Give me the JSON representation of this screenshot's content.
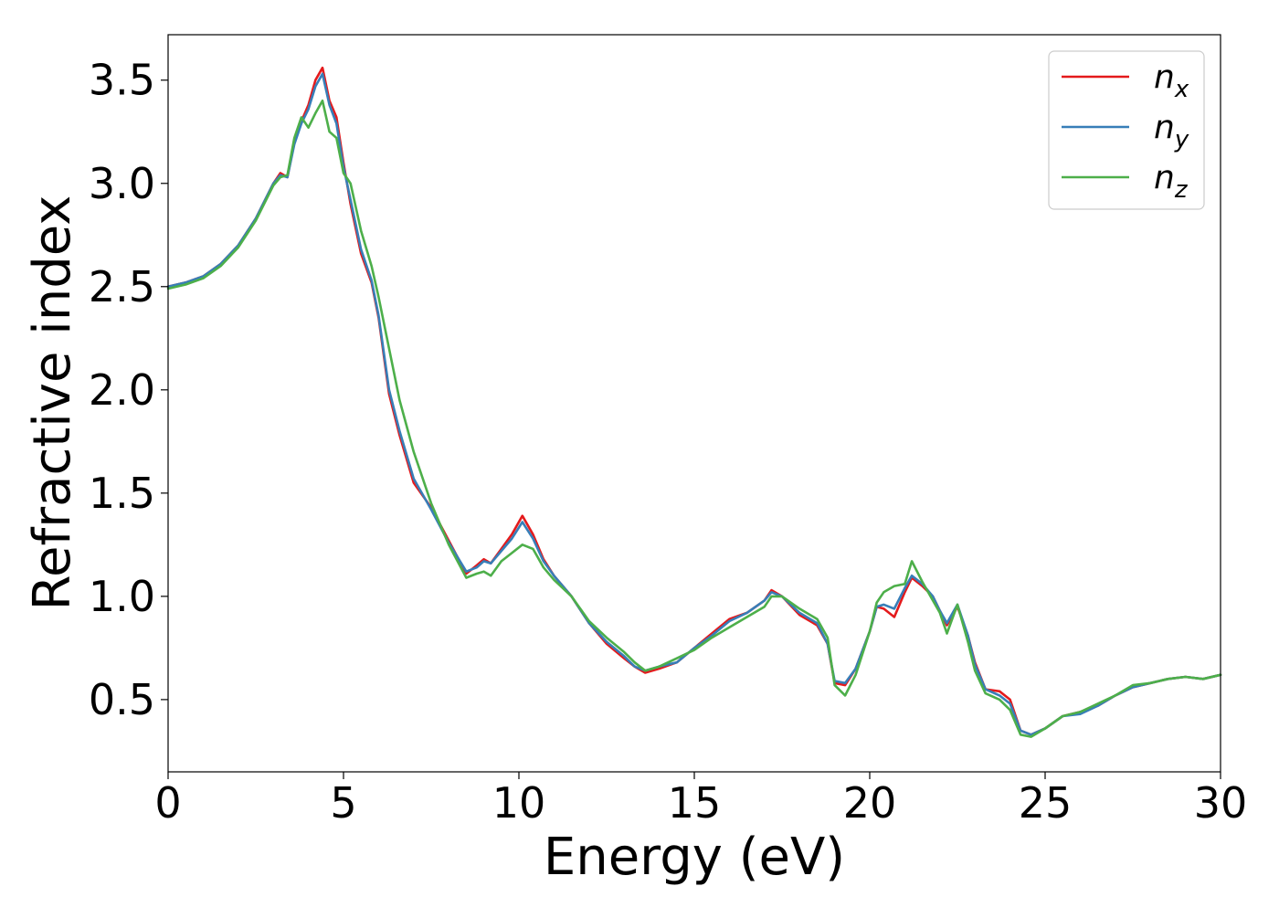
{
  "chart_data": {
    "type": "line",
    "title": "",
    "xlabel": "Energy (eV)",
    "ylabel": "Refractive index",
    "xlim": [
      0,
      30
    ],
    "ylim": [
      0.15,
      3.72
    ],
    "xticks": [
      0,
      5,
      10,
      15,
      20,
      25,
      30
    ],
    "xtick_labels": [
      "0",
      "5",
      "10",
      "15",
      "20",
      "25",
      "30"
    ],
    "yticks": [
      0.5,
      1.0,
      1.5,
      2.0,
      2.5,
      3.0,
      3.5
    ],
    "ytick_labels": [
      "0.5",
      "1.0",
      "1.5",
      "2.0",
      "2.5",
      "3.0",
      "3.5"
    ],
    "grid": false,
    "legend_position": "top-right",
    "series": [
      {
        "name": "n_x",
        "label_base": "n",
        "label_sub": "x",
        "color": "#e41a1c",
        "x": [
          0,
          0.5,
          1,
          1.5,
          2,
          2.5,
          3,
          3.2,
          3.4,
          3.6,
          3.8,
          4.0,
          4.2,
          4.4,
          4.6,
          4.8,
          5.0,
          5.2,
          5.5,
          5.8,
          6.0,
          6.3,
          6.6,
          7.0,
          7.5,
          8.0,
          8.5,
          8.8,
          9.0,
          9.2,
          9.5,
          9.8,
          10.1,
          10.4,
          10.7,
          11.0,
          11.5,
          12.0,
          12.5,
          13.0,
          13.3,
          13.6,
          14.0,
          14.5,
          15.0,
          15.5,
          16.0,
          16.5,
          17.0,
          17.2,
          17.5,
          18.0,
          18.5,
          18.8,
          19.0,
          19.3,
          19.6,
          20.0,
          20.2,
          20.4,
          20.7,
          21.0,
          21.2,
          21.5,
          21.8,
          22.0,
          22.2,
          22.5,
          22.8,
          23.0,
          23.3,
          23.7,
          24.0,
          24.3,
          24.6,
          25.0,
          25.5,
          26.0,
          26.5,
          27.0,
          27.5,
          28.0,
          28.5,
          29.0,
          29.5,
          30.0
        ],
        "y": [
          2.5,
          2.52,
          2.55,
          2.61,
          2.7,
          2.83,
          3.0,
          3.05,
          3.03,
          3.2,
          3.3,
          3.38,
          3.5,
          3.56,
          3.4,
          3.32,
          3.1,
          2.9,
          2.66,
          2.52,
          2.35,
          1.98,
          1.78,
          1.55,
          1.43,
          1.27,
          1.11,
          1.15,
          1.18,
          1.16,
          1.23,
          1.3,
          1.39,
          1.3,
          1.18,
          1.1,
          1.0,
          0.87,
          0.77,
          0.7,
          0.66,
          0.63,
          0.65,
          0.68,
          0.75,
          0.82,
          0.89,
          0.92,
          0.98,
          1.03,
          1.0,
          0.91,
          0.86,
          0.77,
          0.58,
          0.57,
          0.65,
          0.83,
          0.95,
          0.94,
          0.9,
          1.02,
          1.09,
          1.05,
          1.0,
          0.93,
          0.86,
          0.95,
          0.81,
          0.68,
          0.55,
          0.54,
          0.5,
          0.35,
          0.33,
          0.36,
          0.42,
          0.44,
          0.47,
          0.52,
          0.56,
          0.58,
          0.6,
          0.61,
          0.6,
          0.62
        ]
      },
      {
        "name": "n_y",
        "label_base": "n",
        "label_sub": "y",
        "color": "#377eb8",
        "x": [
          0,
          0.5,
          1,
          1.5,
          2,
          2.5,
          3,
          3.2,
          3.4,
          3.6,
          3.8,
          4.0,
          4.2,
          4.4,
          4.6,
          4.8,
          5.0,
          5.2,
          5.5,
          5.8,
          6.0,
          6.3,
          6.6,
          7.0,
          7.5,
          8.0,
          8.5,
          8.8,
          9.0,
          9.2,
          9.5,
          9.8,
          10.1,
          10.4,
          10.7,
          11.0,
          11.5,
          12.0,
          12.5,
          13.0,
          13.3,
          13.6,
          14.0,
          14.5,
          15.0,
          15.5,
          16.0,
          16.5,
          17.0,
          17.2,
          17.5,
          18.0,
          18.5,
          18.8,
          19.0,
          19.3,
          19.6,
          20.0,
          20.2,
          20.4,
          20.7,
          21.0,
          21.2,
          21.5,
          21.8,
          22.0,
          22.2,
          22.5,
          22.8,
          23.0,
          23.3,
          23.7,
          24.0,
          24.3,
          24.6,
          25.0,
          25.5,
          26.0,
          26.5,
          27.0,
          27.5,
          28.0,
          28.5,
          29.0,
          29.5,
          30.0
        ],
        "y": [
          2.5,
          2.52,
          2.55,
          2.61,
          2.7,
          2.83,
          3.0,
          3.04,
          3.03,
          3.19,
          3.29,
          3.36,
          3.47,
          3.53,
          3.38,
          3.29,
          3.08,
          2.92,
          2.68,
          2.53,
          2.36,
          2.0,
          1.8,
          1.57,
          1.42,
          1.26,
          1.12,
          1.14,
          1.17,
          1.16,
          1.22,
          1.28,
          1.36,
          1.28,
          1.17,
          1.1,
          1.0,
          0.87,
          0.78,
          0.71,
          0.66,
          0.64,
          0.66,
          0.68,
          0.75,
          0.81,
          0.88,
          0.92,
          0.98,
          1.02,
          1.0,
          0.92,
          0.87,
          0.77,
          0.59,
          0.58,
          0.65,
          0.83,
          0.95,
          0.96,
          0.94,
          1.04,
          1.1,
          1.06,
          1.0,
          0.93,
          0.87,
          0.96,
          0.81,
          0.67,
          0.55,
          0.52,
          0.48,
          0.35,
          0.33,
          0.36,
          0.42,
          0.43,
          0.47,
          0.52,
          0.56,
          0.58,
          0.6,
          0.61,
          0.6,
          0.62
        ]
      },
      {
        "name": "n_z",
        "label_base": "n",
        "label_sub": "z",
        "color": "#4daf4a",
        "x": [
          0,
          0.5,
          1,
          1.5,
          2,
          2.5,
          3,
          3.2,
          3.4,
          3.6,
          3.8,
          4.0,
          4.2,
          4.4,
          4.6,
          4.8,
          5.0,
          5.2,
          5.5,
          5.8,
          6.0,
          6.3,
          6.6,
          7.0,
          7.5,
          8.0,
          8.5,
          8.8,
          9.0,
          9.2,
          9.5,
          9.8,
          10.1,
          10.4,
          10.7,
          11.0,
          11.5,
          12.0,
          12.5,
          13.0,
          13.3,
          13.6,
          14.0,
          14.5,
          15.0,
          15.5,
          16.0,
          16.5,
          17.0,
          17.2,
          17.5,
          18.0,
          18.5,
          18.8,
          19.0,
          19.3,
          19.6,
          20.0,
          20.2,
          20.4,
          20.7,
          21.0,
          21.2,
          21.5,
          21.8,
          22.0,
          22.2,
          22.5,
          22.8,
          23.0,
          23.3,
          23.7,
          24.0,
          24.3,
          24.6,
          25.0,
          25.5,
          26.0,
          26.5,
          27.0,
          27.5,
          28.0,
          28.5,
          29.0,
          29.5,
          30.0
        ],
        "y": [
          2.49,
          2.51,
          2.54,
          2.6,
          2.69,
          2.82,
          2.99,
          3.03,
          3.04,
          3.22,
          3.32,
          3.27,
          3.34,
          3.4,
          3.25,
          3.22,
          3.05,
          3.0,
          2.77,
          2.6,
          2.45,
          2.2,
          1.95,
          1.7,
          1.45,
          1.25,
          1.09,
          1.11,
          1.12,
          1.1,
          1.17,
          1.21,
          1.25,
          1.23,
          1.14,
          1.08,
          1.0,
          0.88,
          0.8,
          0.73,
          0.68,
          0.64,
          0.66,
          0.7,
          0.74,
          0.8,
          0.85,
          0.9,
          0.95,
          1.0,
          1.0,
          0.94,
          0.89,
          0.8,
          0.57,
          0.52,
          0.62,
          0.83,
          0.97,
          1.02,
          1.05,
          1.06,
          1.17,
          1.07,
          0.98,
          0.92,
          0.82,
          0.96,
          0.78,
          0.64,
          0.53,
          0.5,
          0.45,
          0.33,
          0.32,
          0.36,
          0.42,
          0.44,
          0.48,
          0.52,
          0.57,
          0.58,
          0.6,
          0.61,
          0.6,
          0.62
        ]
      }
    ]
  }
}
